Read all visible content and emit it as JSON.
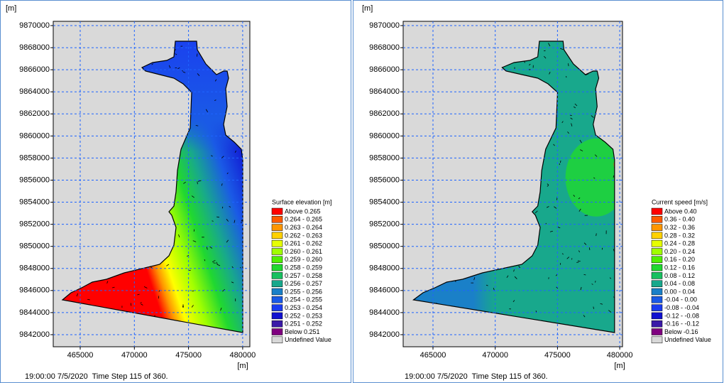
{
  "panels": [
    {
      "y_unit": "[m]",
      "x_unit": "[m]",
      "yticks": [
        9870000,
        9868000,
        9866000,
        9864000,
        9862000,
        9860000,
        9858000,
        9856000,
        9854000,
        9852000,
        9850000,
        9848000,
        9846000,
        9844000,
        9842000
      ],
      "xticks": [
        465000,
        470000,
        475000,
        480000
      ],
      "legend": {
        "title": "Surface elevation [m]",
        "entries": [
          {
            "label": "Above 0.265",
            "color": "#ff0000"
          },
          {
            "label": "0.264 - 0.265",
            "color": "#ff5a00"
          },
          {
            "label": "0.263 - 0.264",
            "color": "#ff9600"
          },
          {
            "label": "0.262 - 0.263",
            "color": "#ffd200"
          },
          {
            "label": "0.261 - 0.262",
            "color": "#e6ff00"
          },
          {
            "label": "0.260 - 0.261",
            "color": "#a0ff00"
          },
          {
            "label": "0.259 - 0.260",
            "color": "#50f000"
          },
          {
            "label": "0.258 - 0.259",
            "color": "#20d830"
          },
          {
            "label": "0.257 - 0.258",
            "color": "#18c060"
          },
          {
            "label": "0.256 - 0.257",
            "color": "#18a88c"
          },
          {
            "label": "0.255 - 0.256",
            "color": "#1a80c8"
          },
          {
            "label": "0.254 - 0.255",
            "color": "#1a5ae6"
          },
          {
            "label": "0.253 - 0.254",
            "color": "#1a3cf0"
          },
          {
            "label": "0.252 - 0.253",
            "color": "#1010d0"
          },
          {
            "label": "0.251 - 0.252",
            "color": "#3a1aa8"
          },
          {
            "label": "Below 0.251",
            "color": "#800080"
          },
          {
            "label": "Undefined Value",
            "color": "#d8d8d8"
          }
        ]
      },
      "footer": "19:00:00 7/5/2020  Time Step 115 of 360."
    },
    {
      "y_unit": "[m]",
      "x_unit": "[m]",
      "yticks": [
        9870000,
        9868000,
        9866000,
        9864000,
        9862000,
        9860000,
        9858000,
        9856000,
        9854000,
        9852000,
        9850000,
        9848000,
        9846000,
        9844000,
        9842000
      ],
      "xticks": [
        465000,
        470000,
        475000,
        480000
      ],
      "legend": {
        "title": "Current speed [m/s]",
        "entries": [
          {
            "label": "Above 0.40",
            "color": "#ff0000"
          },
          {
            "label": "0.36 - 0.40",
            "color": "#ff5a00"
          },
          {
            "label": "0.32 - 0.36",
            "color": "#ff9600"
          },
          {
            "label": "0.28 - 0.32",
            "color": "#ffd200"
          },
          {
            "label": "0.24 - 0.28",
            "color": "#e6ff00"
          },
          {
            "label": "0.20 - 0.24",
            "color": "#a0ff00"
          },
          {
            "label": "0.16 - 0.20",
            "color": "#50f000"
          },
          {
            "label": "0.12 - 0.16",
            "color": "#20d830"
          },
          {
            "label": "0.08 - 0.12",
            "color": "#18c060"
          },
          {
            "label": "0.04 - 0.08",
            "color": "#18a88c"
          },
          {
            "label": "0.00 - 0.04",
            "color": "#1a80c8"
          },
          {
            "label": "-0.04 - 0.00",
            "color": "#1a5ae6"
          },
          {
            "label": "-0.08 - -0.04",
            "color": "#1a3cf0"
          },
          {
            "label": "-0.12 - -0.08",
            "color": "#1010d0"
          },
          {
            "label": "-0.16 - -0.12",
            "color": "#3a1aa8"
          },
          {
            "label": "Below -0.16",
            "color": "#800080"
          },
          {
            "label": "Undefined Value",
            "color": "#d8d8d8"
          }
        ]
      },
      "footer": "19:00:00 7/5/2020  Time Step 115 of 360."
    }
  ]
}
